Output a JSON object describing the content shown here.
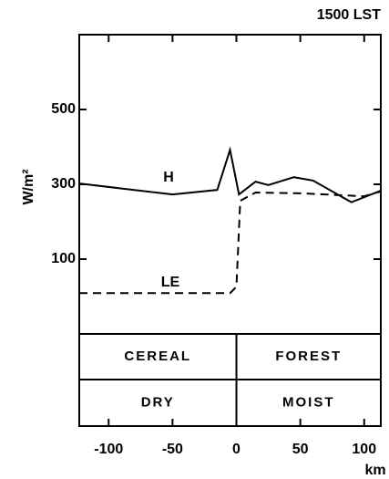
{
  "chart_data": {
    "type": "line",
    "title": "1500 LST",
    "ylabel": "W/m²",
    "xlabel": "km",
    "xlim": [
      -123,
      113
    ],
    "ylim": [
      -100,
      700
    ],
    "xticks": [
      -100,
      -50,
      0,
      50,
      100
    ],
    "yticks": [
      100,
      300,
      500
    ],
    "color": "#000000",
    "series": [
      {
        "name": "H",
        "dash": false,
        "x": [
          -123,
          -50,
          -15,
          -5,
          2,
          15,
          25,
          45,
          60,
          90,
          113
        ],
        "values": [
          302,
          273,
          285,
          392,
          273,
          307,
          298,
          319,
          310,
          252,
          283
        ]
      },
      {
        "name": "LE",
        "dash": true,
        "x": [
          -123,
          -5,
          0,
          3,
          15,
          50,
          100,
          113
        ],
        "values": [
          9,
          9,
          26,
          256,
          278,
          276,
          268,
          281
        ]
      }
    ],
    "regions": [
      [
        "CEREAL",
        "FOREST"
      ],
      [
        "DRY",
        "MOIST"
      ]
    ],
    "region_divide": 0
  }
}
